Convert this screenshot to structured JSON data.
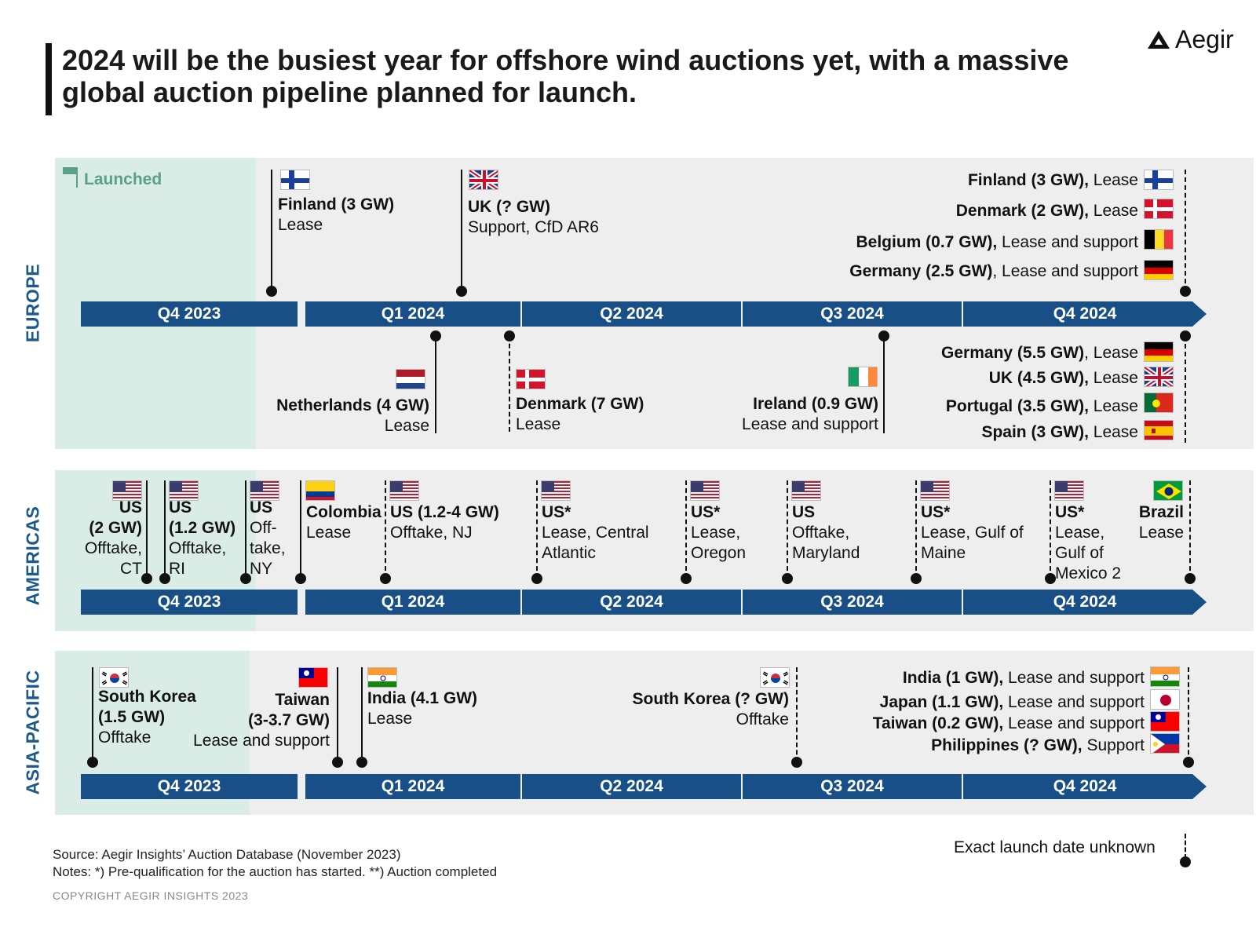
{
  "title": "2024 will be the busiest year for offshore wind auctions yet, with a massive global auction pipeline planned for launch.",
  "logo_text": "Aegir",
  "launched_label": "Launched",
  "quarters": [
    "Q4 2023",
    "Q1 2024",
    "Q2 2024",
    "Q3 2024",
    "Q4 2024"
  ],
  "regions": {
    "europe": "EUROPE",
    "americas": "AMERICAS",
    "asia": "ASIA-PACIFIC"
  },
  "europe_top": [
    {
      "name": "Finland (3 GW)",
      "detail": "Lease"
    },
    {
      "name": "UK (? GW)",
      "detail": "Support, CfD AR6"
    }
  ],
  "europe_top_right": [
    {
      "name": "Finland (3 GW),",
      "detail": " Lease"
    },
    {
      "name": "Denmark (2 GW),",
      "detail": " Lease"
    },
    {
      "name": "Belgium (0.7 GW),",
      "detail": " Lease and support"
    },
    {
      "name": "Germany (2.5 GW)",
      "detail": ", Lease and support"
    }
  ],
  "europe_bottom": [
    {
      "name": "Netherlands (4 GW)",
      "detail": "Lease"
    },
    {
      "name": "Denmark (7 GW)",
      "detail": "Lease"
    },
    {
      "name": "Ireland (0.9 GW)",
      "detail": "Lease and support"
    }
  ],
  "europe_bottom_right": [
    {
      "name": "Germany (5.5 GW)",
      "detail": ", Lease"
    },
    {
      "name": "UK (4.5 GW),",
      "detail": " Lease"
    },
    {
      "name": "Portugal (3.5 GW),",
      "detail": " Lease"
    },
    {
      "name": "Spain (3 GW),",
      "detail": " Lease"
    }
  ],
  "americas": [
    {
      "lines_b": [
        "US",
        "(2 GW)"
      ],
      "lines": [
        "Offtake,",
        "CT"
      ]
    },
    {
      "lines_b": [
        "US",
        "(1.2 GW)"
      ],
      "lines": [
        "Offtake,",
        "RI"
      ]
    },
    {
      "lines_b": [
        "US"
      ],
      "lines": [
        "Off-",
        "take,",
        "NY"
      ]
    },
    {
      "lines_b": [
        "Colombia"
      ],
      "lines": [
        "Lease"
      ]
    },
    {
      "lines_b": [
        "US (1.2-4 GW)"
      ],
      "lines": [
        "Offtake, NJ"
      ]
    },
    {
      "lines_b": [
        "US*"
      ],
      "lines": [
        "Lease, Central",
        "Atlantic"
      ]
    },
    {
      "lines_b": [
        "US*"
      ],
      "lines": [
        "Lease,",
        "Oregon"
      ]
    },
    {
      "lines_b": [
        "US"
      ],
      "lines": [
        "Offtake,",
        "Maryland"
      ]
    },
    {
      "lines_b": [
        "US*"
      ],
      "lines": [
        "Lease, Gulf of",
        "Maine"
      ]
    },
    {
      "lines_b": [
        "US*"
      ],
      "lines": [
        "Lease,",
        "Gulf of",
        "Mexico 2"
      ]
    },
    {
      "lines_b": [
        "Brazil"
      ],
      "lines": [
        "Lease"
      ]
    }
  ],
  "asia": [
    {
      "lines_b": [
        "South Korea",
        "(1.5 GW)"
      ],
      "lines": [
        "Offtake"
      ]
    },
    {
      "lines_b": [
        "Taiwan",
        "(3-3.7 GW)"
      ],
      "lines": [
        "Lease and support"
      ]
    },
    {
      "lines_b": [
        "India (4.1 GW)"
      ],
      "lines": [
        "Lease"
      ]
    },
    {
      "lines_b": [
        "South Korea (? GW)"
      ],
      "lines": [
        "Offtake"
      ]
    }
  ],
  "asia_right": [
    {
      "name": "India (1 GW),",
      "detail": " Lease and support"
    },
    {
      "name": "Japan (1.1 GW),",
      "detail": " Lease and support"
    },
    {
      "name": "Taiwan (0.2 GW),",
      "detail": " Lease and support"
    },
    {
      "name": "Philippines (? GW),",
      "detail": " Support"
    }
  ],
  "footer": {
    "source": "Source: Aegir Insights’ Auction Database (November 2023)",
    "notes": "Notes: *) Pre-qualification for the auction has started. **) Auction completed",
    "copyright": "COPYRIGHT AEGIR INSIGHTS 2023",
    "legend": "Exact launch date unknown"
  },
  "colors": {
    "bar": "#174f86",
    "launched_bg": "#d9ede6",
    "panel_bg": "#eeeeee",
    "launched_text": "#5aa088",
    "region": "#1d5a8a"
  }
}
